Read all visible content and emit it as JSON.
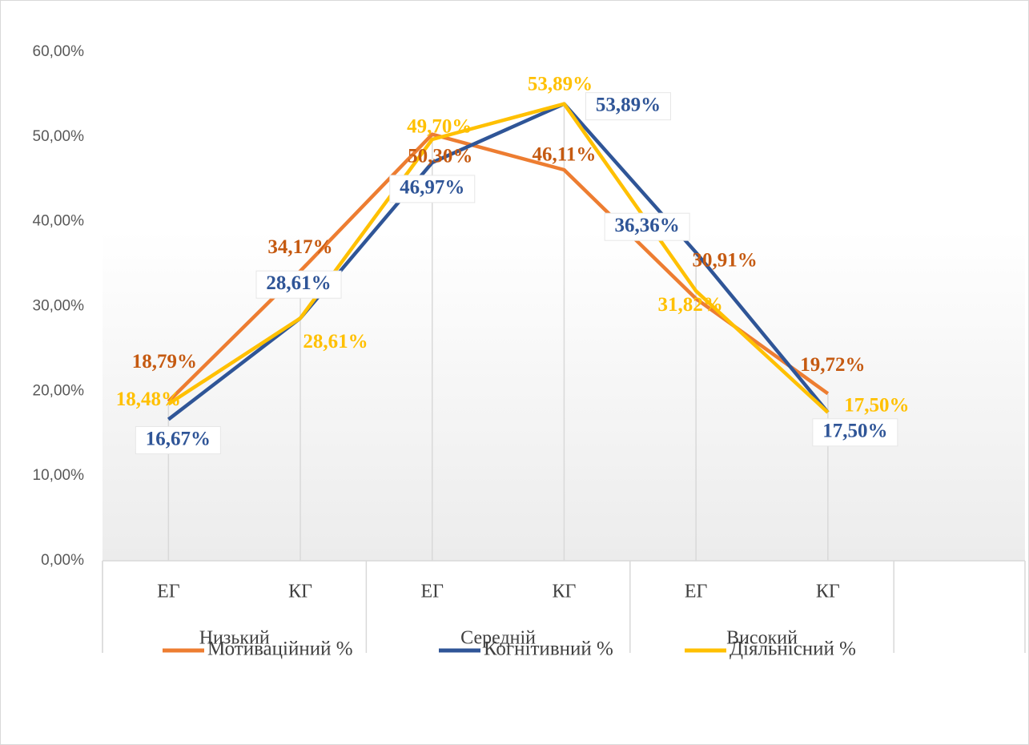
{
  "chart_data": {
    "type": "line",
    "categories": [
      "ЕГ",
      "КГ",
      "ЕГ",
      "КГ",
      "ЕГ",
      "КГ"
    ],
    "groups": [
      "Низький",
      "Середній",
      "Високий"
    ],
    "ylim": [
      0,
      60
    ],
    "yticks": [
      {
        "value": 0,
        "label": "0,00%"
      },
      {
        "value": 10,
        "label": "10,00%"
      },
      {
        "value": 20,
        "label": "20,00%"
      },
      {
        "value": 30,
        "label": "30,00%"
      },
      {
        "value": 40,
        "label": "40,00%"
      },
      {
        "value": 50,
        "label": "50,00%"
      },
      {
        "value": 60,
        "label": "60,00%"
      }
    ],
    "legend": "bottom",
    "series": [
      {
        "name": "Мотиваційний %",
        "color": "#ED7D31",
        "values": [
          18.79,
          34.17,
          50.3,
          46.11,
          30.91,
          19.72
        ],
        "value_labels": [
          "18,79%",
          "34,17%",
          "50,30%",
          "46,11%",
          "30,91%",
          "19,72%"
        ]
      },
      {
        "name": "Когнітивний %",
        "color": "#2F5597",
        "values": [
          16.67,
          28.61,
          46.97,
          53.89,
          36.36,
          17.5
        ],
        "value_labels": [
          "16,67%",
          "28,61%",
          "46,97%",
          "53,89%",
          "36,36%",
          "17,50%"
        ]
      },
      {
        "name": "Діяльнісний %",
        "color": "#FFC000",
        "values": [
          18.48,
          28.61,
          49.7,
          53.89,
          31.82,
          17.5
        ],
        "value_labels": [
          "18,48%",
          "28,61%",
          "49,70%",
          "53,89%",
          "31,82%",
          "17,50%"
        ]
      }
    ]
  }
}
